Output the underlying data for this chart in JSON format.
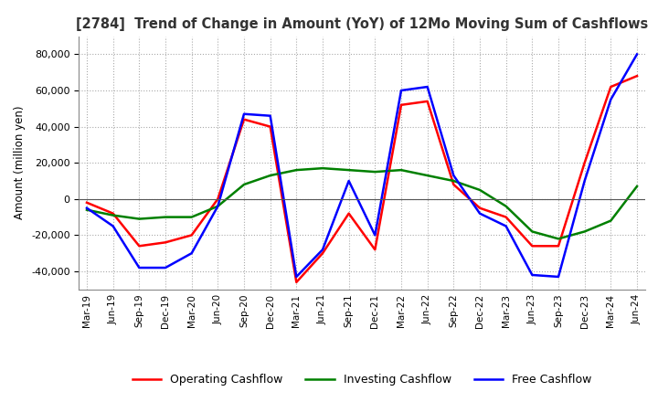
{
  "title": "[2784]  Trend of Change in Amount (YoY) of 12Mo Moving Sum of Cashflows",
  "ylabel": "Amount (million yen)",
  "ylim": [
    -50000,
    90000
  ],
  "yticks": [
    -40000,
    -20000,
    0,
    20000,
    40000,
    60000,
    80000
  ],
  "x_labels": [
    "Mar-19",
    "Jun-19",
    "Sep-19",
    "Dec-19",
    "Mar-20",
    "Jun-20",
    "Sep-20",
    "Dec-20",
    "Mar-21",
    "Jun-21",
    "Sep-21",
    "Dec-21",
    "Mar-22",
    "Jun-22",
    "Sep-22",
    "Dec-22",
    "Mar-23",
    "Jun-23",
    "Sep-23",
    "Dec-23",
    "Mar-24",
    "Jun-24"
  ],
  "operating_cashflow": [
    -2000,
    -8000,
    -26000,
    -24000,
    -20000,
    0,
    44000,
    40000,
    -46000,
    -30000,
    -8000,
    -28000,
    52000,
    54000,
    8000,
    -5000,
    -10000,
    -26000,
    -26000,
    20000,
    62000,
    68000
  ],
  "investing_cashflow": [
    -6000,
    -9000,
    -11000,
    -10000,
    -10000,
    -4000,
    8000,
    13000,
    16000,
    17000,
    16000,
    15000,
    16000,
    13000,
    10000,
    5000,
    -4000,
    -18000,
    -22000,
    -18000,
    -12000,
    7000
  ],
  "free_cashflow": [
    -5000,
    -15000,
    -38000,
    -38000,
    -30000,
    -4000,
    47000,
    46000,
    -43000,
    -28000,
    10000,
    -20000,
    60000,
    62000,
    13000,
    -8000,
    -15000,
    -42000,
    -43000,
    10000,
    55000,
    80000
  ],
  "operating_color": "#ff0000",
  "investing_color": "#008000",
  "free_color": "#0000ff",
  "bg_color": "#ffffff",
  "grid_color": "#aaaaaa"
}
